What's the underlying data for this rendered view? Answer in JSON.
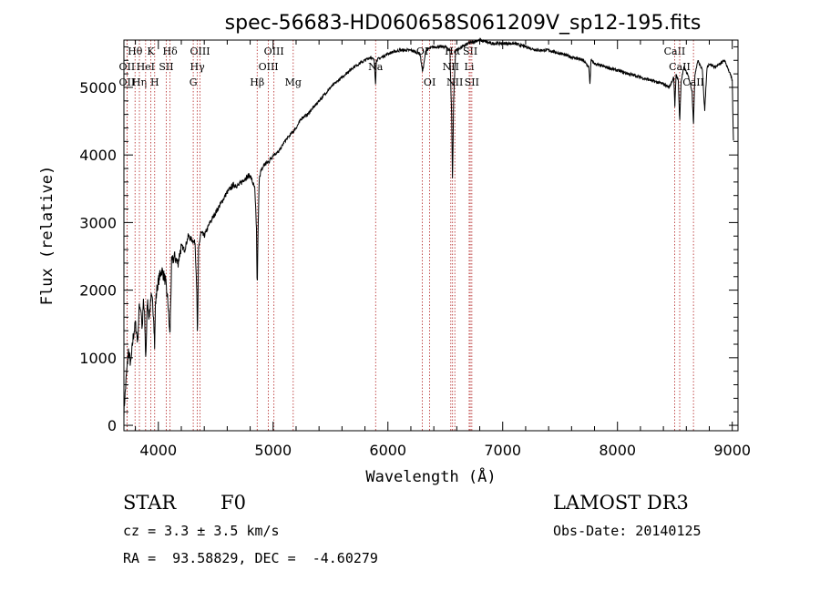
{
  "chart_data": {
    "type": "line",
    "title": "spec-56683-HD060658S061209V_sp12-195.fits",
    "xlabel": "Wavelength (Å)",
    "ylabel": "Flux (relative)",
    "xlim": [
      3700,
      9050
    ],
    "ylim": [
      -80,
      5700
    ],
    "xticks": [
      4000,
      5000,
      6000,
      7000,
      8000,
      9000
    ],
    "yticks": [
      0,
      1000,
      2000,
      3000,
      4000,
      5000
    ],
    "grid": false,
    "line_color": "#000000",
    "marker_color": "#b22222",
    "spectrum": {
      "x": [
        3700,
        3720,
        3740,
        3760,
        3780,
        3800,
        3820,
        3835,
        3850,
        3860,
        3870,
        3880,
        3890,
        3905,
        3920,
        3935,
        3950,
        3960,
        3968,
        3975,
        3990,
        4010,
        4030,
        4060,
        4085,
        4101,
        4115,
        4140,
        4170,
        4200,
        4230,
        4260,
        4290,
        4320,
        4335,
        4341,
        4350,
        4370,
        4400,
        4450,
        4500,
        4550,
        4600,
        4650,
        4700,
        4750,
        4800,
        4840,
        4855,
        4861,
        4868,
        4880,
        4920,
        4960,
        5000,
        5050,
        5100,
        5150,
        5200,
        5250,
        5300,
        5400,
        5500,
        5600,
        5700,
        5800,
        5850,
        5880,
        5893,
        5900,
        5950,
        6000,
        6100,
        6200,
        6280,
        6300,
        6310,
        6330,
        6400,
        6500,
        6540,
        6555,
        6563,
        6572,
        6590,
        6650,
        6700,
        6800,
        6900,
        7000,
        7100,
        7200,
        7300,
        7400,
        7500,
        7600,
        7700,
        7750,
        7760,
        7770,
        7800,
        7900,
        8000,
        8100,
        8200,
        8300,
        8400,
        8450,
        8490,
        8500,
        8510,
        8530,
        8542,
        8555,
        8580,
        8620,
        8650,
        8662,
        8675,
        8700,
        8740,
        8760,
        8780,
        8800,
        8850,
        8900,
        8930,
        8960,
        8980,
        9000,
        9010
      ],
      "y": [
        200,
        700,
        1100,
        900,
        1300,
        1500,
        1250,
        1800,
        1700,
        1400,
        1850,
        1600,
        1000,
        1850,
        1600,
        1900,
        1800,
        1600,
        1150,
        1800,
        2050,
        2200,
        2300,
        2150,
        1800,
        1300,
        2400,
        2500,
        2400,
        2650,
        2600,
        2800,
        2750,
        2700,
        2000,
        1250,
        2600,
        2850,
        2800,
        3000,
        3150,
        3300,
        3450,
        3550,
        3550,
        3650,
        3700,
        3500,
        2900,
        2000,
        2800,
        3700,
        3850,
        3900,
        4000,
        4050,
        4200,
        4300,
        4400,
        4550,
        4600,
        4800,
        5000,
        5150,
        5300,
        5400,
        5450,
        5400,
        5050,
        5400,
        5450,
        5500,
        5550,
        5550,
        5500,
        5250,
        5300,
        5550,
        5600,
        5600,
        5550,
        4600,
        3600,
        4800,
        5550,
        5600,
        5650,
        5700,
        5650,
        5650,
        5650,
        5600,
        5550,
        5550,
        5500,
        5450,
        5400,
        5300,
        5050,
        5400,
        5350,
        5300,
        5250,
        5200,
        5150,
        5100,
        5050,
        5000,
        5150,
        4700,
        5200,
        5100,
        4500,
        5100,
        5300,
        5150,
        4950,
        4450,
        5200,
        5400,
        5250,
        4650,
        5300,
        5350,
        5300,
        5350,
        5400,
        5300,
        5200,
        5100,
        4200
      ]
    },
    "line_markers": [
      {
        "label": "Hθ",
        "x": 3797,
        "row": 0
      },
      {
        "label": "OII",
        "x": 3727,
        "row": 1
      },
      {
        "label": "OII",
        "x": 3727,
        "row": 2
      },
      {
        "label": "Hη",
        "x": 3835,
        "row": 2
      },
      {
        "label": "HeI",
        "x": 3889,
        "row": 1
      },
      {
        "label": "K",
        "x": 3934,
        "row": 0
      },
      {
        "label": "SII",
        "x": 4069,
        "row": 1
      },
      {
        "label": "H",
        "x": 3968,
        "row": 2
      },
      {
        "label": "Hδ",
        "x": 4102,
        "row": 0
      },
      {
        "label": "OIII",
        "x": 4363,
        "row": 0
      },
      {
        "label": "Hγ",
        "x": 4340,
        "row": 1
      },
      {
        "label": "G",
        "x": 4304,
        "row": 2
      },
      {
        "label": "OIII",
        "x": 5007,
        "row": 0
      },
      {
        "label": "OIII",
        "x": 4959,
        "row": 1
      },
      {
        "label": "Hβ",
        "x": 4861,
        "row": 2
      },
      {
        "label": "Mg",
        "x": 5175,
        "row": 2
      },
      {
        "label": "Na",
        "x": 5893,
        "row": 1
      },
      {
        "label": "OI",
        "x": 6300,
        "row": 0
      },
      {
        "label": "OI",
        "x": 6364,
        "row": 2
      },
      {
        "label": "Hα",
        "x": 6563,
        "row": 0
      },
      {
        "label": "SII",
        "x": 6717,
        "row": 0
      },
      {
        "label": "NII",
        "x": 6548,
        "row": 1
      },
      {
        "label": "Li",
        "x": 6708,
        "row": 1
      },
      {
        "label": "NII",
        "x": 6583,
        "row": 2
      },
      {
        "label": "SII",
        "x": 6731,
        "row": 2
      },
      {
        "label": "CaII",
        "x": 8498,
        "row": 0
      },
      {
        "label": "CaII",
        "x": 8542,
        "row": 1
      },
      {
        "label": "CaII",
        "x": 8662,
        "row": 2
      }
    ]
  },
  "info": {
    "object_class": "STAR",
    "subclass": "F0",
    "survey": "LAMOST DR3",
    "cz": "cz = 3.3 ± 3.5 km/s",
    "obs_date": "Obs-Date: 20140125",
    "coords": "RA =  93.58829, DEC =  -4.60279"
  }
}
